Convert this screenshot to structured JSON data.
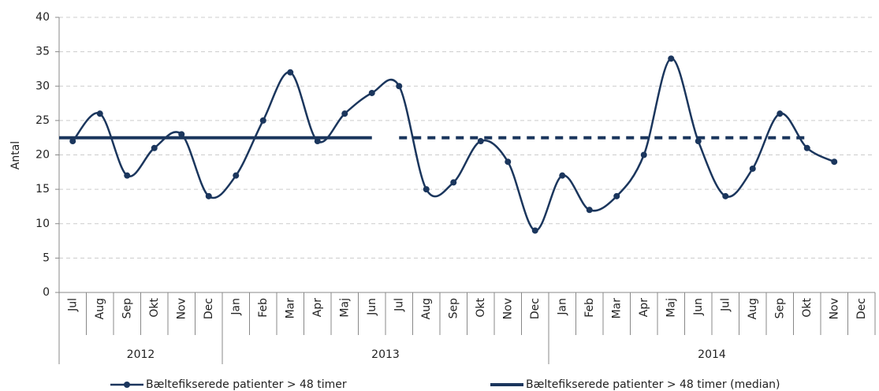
{
  "chart_data": {
    "type": "line",
    "ylabel": "Antal",
    "categories": [
      "Jul",
      "Aug",
      "Sep",
      "Okt",
      "Nov",
      "Dec",
      "Jan",
      "Feb",
      "Mar",
      "Apr",
      "Maj",
      "Jun",
      "Jul",
      "Aug",
      "Sep",
      "Okt",
      "Nov",
      "Dec",
      "Jan",
      "Feb",
      "Mar",
      "Apr",
      "Maj",
      "Jun",
      "Jul",
      "Aug",
      "Sep",
      "Okt",
      "Nov",
      "Dec"
    ],
    "groups": [
      {
        "label": "2012",
        "span": 6
      },
      {
        "label": "2013",
        "span": 12
      },
      {
        "label": "2014",
        "span": 12
      }
    ],
    "series": [
      {
        "name": "Bæltefikserede patienter > 48 timer",
        "color": "#1b365d",
        "smooth": true,
        "markers": true,
        "values": [
          22,
          26,
          17,
          21,
          23,
          14,
          17,
          25,
          32,
          22,
          26,
          29,
          30,
          15,
          16,
          22,
          19,
          9,
          17,
          12,
          14,
          20,
          34,
          22,
          14,
          18,
          26,
          21,
          19,
          null
        ]
      },
      {
        "name": "Bæltefikserede patienter > 48 timer (median)",
        "color": "#1b365d",
        "dash_from_index": 12,
        "values": [
          22.5,
          22.5,
          22.5,
          22.5,
          22.5,
          22.5,
          22.5,
          22.5,
          22.5,
          22.5,
          22.5,
          22.5,
          22.5,
          22.5,
          22.5,
          22.5,
          22.5,
          22.5,
          22.5,
          22.5,
          22.5,
          22.5,
          22.5,
          22.5,
          22.5,
          22.5,
          22.5,
          22.5,
          null,
          null
        ]
      }
    ],
    "ylim": [
      0,
      40
    ],
    "yticks": [
      0,
      5,
      10,
      15,
      20,
      25,
      30,
      35,
      40
    ],
    "grid": true,
    "legend": "bottom"
  }
}
